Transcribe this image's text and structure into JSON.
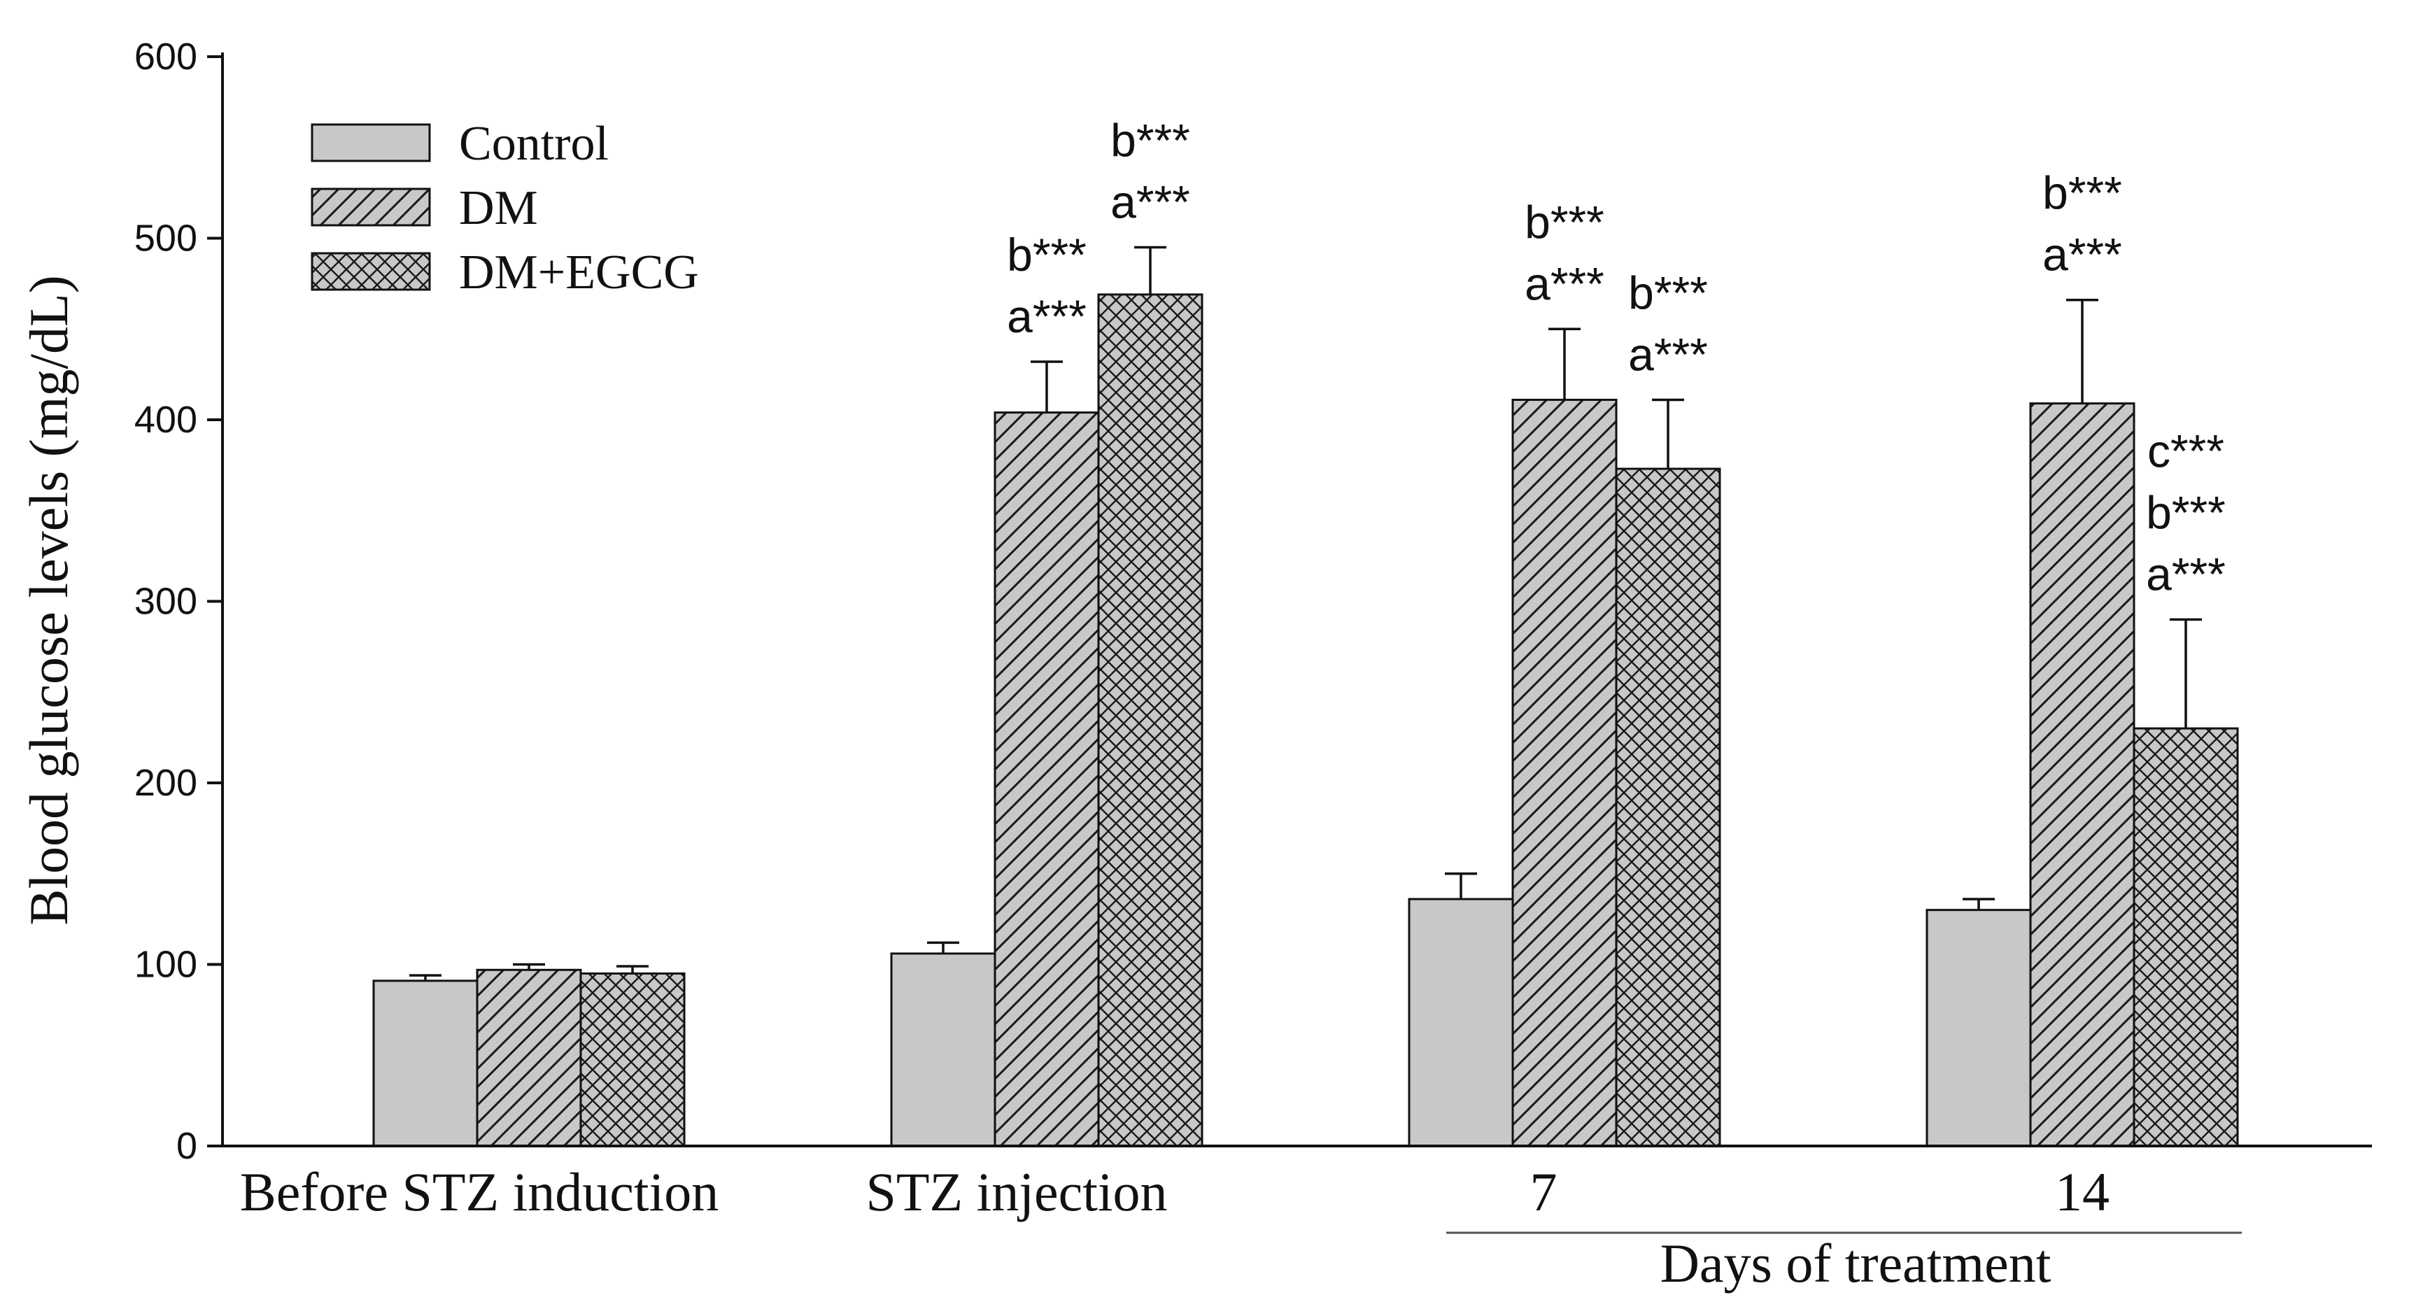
{
  "chart_data": {
    "type": "bar",
    "title": "",
    "ylabel": "Blood glucose levels (mg/dL)",
    "xlabel": "Days of  treatment",
    "ylim": [
      0,
      600
    ],
    "yticks": [
      0,
      100,
      200,
      300,
      400,
      500,
      600
    ],
    "categories": [
      "Before STZ induction",
      "STZ injection",
      "7",
      "14"
    ],
    "group_bracket": {
      "label": "Days of  treatment",
      "spans_categories": [
        "7",
        "14"
      ]
    },
    "legend_position": "top-left",
    "series": [
      {
        "name": "Control",
        "pattern": "solid-gray",
        "color": "#c8c8c8",
        "values": [
          91,
          106,
          136,
          130
        ],
        "errors": [
          3,
          6,
          14,
          6
        ]
      },
      {
        "name": "DM",
        "pattern": "diagonal-hatch",
        "color": "#c8c8c8",
        "values": [
          97,
          404,
          411,
          409
        ],
        "errors": [
          3,
          28,
          39,
          57
        ]
      },
      {
        "name": "DM+EGCG",
        "pattern": "cross-hatch",
        "color": "#c8c8c8",
        "values": [
          95,
          469,
          373,
          230
        ],
        "errors": [
          4,
          26,
          38,
          60
        ]
      }
    ],
    "annotations": [
      {
        "category": "STZ injection",
        "series": "DM",
        "lines": [
          "b***",
          "a***"
        ]
      },
      {
        "category": "STZ injection",
        "series": "DM+EGCG",
        "lines": [
          "b***",
          "a***"
        ]
      },
      {
        "category": "7",
        "series": "DM",
        "lines": [
          "b***",
          "a***"
        ]
      },
      {
        "category": "7",
        "series": "DM+EGCG",
        "lines": [
          "b***",
          "a***"
        ]
      },
      {
        "category": "14",
        "series": "DM",
        "lines": [
          "b***",
          "a***"
        ]
      },
      {
        "category": "14",
        "series": "DM+EGCG",
        "lines": [
          "c***",
          "b***",
          "a***"
        ]
      }
    ]
  }
}
